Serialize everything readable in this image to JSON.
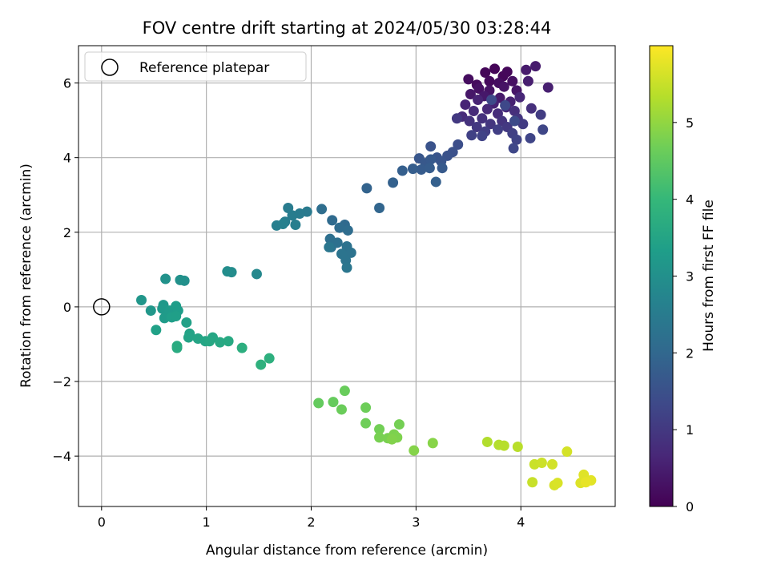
{
  "chart_data": {
    "type": "scatter",
    "title": "FOV centre drift starting at 2024/05/30 03:28:44",
    "xlabel": "Angular distance from reference (arcmin)",
    "ylabel": "Rotation from reference (arcmin)",
    "xlim": [
      -0.22,
      4.9
    ],
    "ylim": [
      -5.35,
      7.0
    ],
    "xticks": [
      0,
      1,
      2,
      3,
      4
    ],
    "yticks": [
      -4,
      -2,
      0,
      2,
      4,
      6
    ],
    "grid": true,
    "legend": {
      "position": "top-left",
      "entries": [
        "Reference platepar"
      ]
    },
    "reference_point": {
      "x": 0,
      "y": 0,
      "label": "Reference platepar",
      "marker": "open-circle"
    },
    "colorbar": {
      "label": "Hours from first FF file",
      "colormap": "viridis",
      "min": 0,
      "max": 6,
      "ticks": [
        0,
        1,
        2,
        3,
        4,
        5
      ]
    },
    "colors": {
      "viridis": [
        "#440154",
        "#482878",
        "#3e4989",
        "#31688e",
        "#26828e",
        "#1f9e89",
        "#35b779",
        "#6ece58",
        "#b5de2b",
        "#fde725"
      ],
      "grid": "#b0b0b0",
      "axes": "#000000"
    },
    "points": [
      {
        "x": 3.75,
        "y": 6.38,
        "t": 0.05
      },
      {
        "x": 3.66,
        "y": 6.28,
        "t": 0.08
      },
      {
        "x": 3.83,
        "y": 6.18,
        "t": 0.1
      },
      {
        "x": 3.87,
        "y": 6.3,
        "t": 0.12
      },
      {
        "x": 3.7,
        "y": 6.05,
        "t": 0.15
      },
      {
        "x": 3.58,
        "y": 5.95,
        "t": 0.17
      },
      {
        "x": 3.5,
        "y": 6.1,
        "t": 0.2
      },
      {
        "x": 3.79,
        "y": 6.0,
        "t": 0.22
      },
      {
        "x": 3.92,
        "y": 6.05,
        "t": 0.25
      },
      {
        "x": 3.6,
        "y": 5.85,
        "t": 0.27
      },
      {
        "x": 3.7,
        "y": 5.8,
        "t": 0.3
      },
      {
        "x": 3.84,
        "y": 5.9,
        "t": 0.32
      },
      {
        "x": 3.96,
        "y": 5.8,
        "t": 0.35
      },
      {
        "x": 3.52,
        "y": 5.7,
        "t": 0.37
      },
      {
        "x": 3.65,
        "y": 5.65,
        "t": 0.4
      },
      {
        "x": 3.8,
        "y": 5.6,
        "t": 0.42
      },
      {
        "x": 4.05,
        "y": 6.35,
        "t": 0.45
      },
      {
        "x": 4.14,
        "y": 6.45,
        "t": 0.47
      },
      {
        "x": 4.07,
        "y": 6.05,
        "t": 0.5
      },
      {
        "x": 4.26,
        "y": 5.88,
        "t": 0.52
      },
      {
        "x": 3.9,
        "y": 5.5,
        "t": 0.55
      },
      {
        "x": 3.74,
        "y": 5.45,
        "t": 0.57
      },
      {
        "x": 3.59,
        "y": 5.55,
        "t": 0.6
      },
      {
        "x": 3.47,
        "y": 5.42,
        "t": 0.62
      },
      {
        "x": 3.99,
        "y": 5.62,
        "t": 0.65
      },
      {
        "x": 3.86,
        "y": 5.35,
        "t": 0.67
      },
      {
        "x": 3.68,
        "y": 5.3,
        "t": 0.7
      },
      {
        "x": 3.55,
        "y": 5.25,
        "t": 0.72
      },
      {
        "x": 3.44,
        "y": 5.1,
        "t": 0.75
      },
      {
        "x": 3.78,
        "y": 5.18,
        "t": 0.77
      },
      {
        "x": 3.94,
        "y": 5.25,
        "t": 0.8
      },
      {
        "x": 4.1,
        "y": 5.32,
        "t": 0.82
      },
      {
        "x": 3.63,
        "y": 5.05,
        "t": 0.85
      },
      {
        "x": 3.51,
        "y": 4.98,
        "t": 0.87
      },
      {
        "x": 3.82,
        "y": 4.98,
        "t": 0.9
      },
      {
        "x": 3.97,
        "y": 5.05,
        "t": 0.92
      },
      {
        "x": 3.71,
        "y": 4.9,
        "t": 0.95
      },
      {
        "x": 3.58,
        "y": 4.82,
        "t": 0.97
      },
      {
        "x": 3.39,
        "y": 5.05,
        "t": 1.0
      },
      {
        "x": 3.87,
        "y": 4.82,
        "t": 1.02
      },
      {
        "x": 4.02,
        "y": 4.9,
        "t": 1.05
      },
      {
        "x": 4.19,
        "y": 5.15,
        "t": 1.07
      },
      {
        "x": 3.66,
        "y": 4.7,
        "t": 1.1
      },
      {
        "x": 3.78,
        "y": 4.75,
        "t": 1.12
      },
      {
        "x": 3.92,
        "y": 4.65,
        "t": 1.15
      },
      {
        "x": 3.53,
        "y": 4.6,
        "t": 1.17
      },
      {
        "x": 3.63,
        "y": 4.58,
        "t": 1.2
      },
      {
        "x": 3.96,
        "y": 4.48,
        "t": 1.22
      },
      {
        "x": 4.09,
        "y": 4.52,
        "t": 1.25
      },
      {
        "x": 4.21,
        "y": 4.75,
        "t": 1.27
      },
      {
        "x": 3.93,
        "y": 4.25,
        "t": 1.3
      },
      {
        "x": 3.85,
        "y": 5.4,
        "t": 1.32
      },
      {
        "x": 3.72,
        "y": 5.55,
        "t": 1.35
      },
      {
        "x": 3.94,
        "y": 4.98,
        "t": 1.37
      },
      {
        "x": 3.4,
        "y": 4.35,
        "t": 1.45
      },
      {
        "x": 3.35,
        "y": 4.15,
        "t": 1.5
      },
      {
        "x": 3.3,
        "y": 4.05,
        "t": 1.52
      },
      {
        "x": 3.14,
        "y": 4.3,
        "t": 1.55
      },
      {
        "x": 3.2,
        "y": 4.0,
        "t": 1.57
      },
      {
        "x": 3.24,
        "y": 3.9,
        "t": 1.6
      },
      {
        "x": 3.03,
        "y": 3.98,
        "t": 1.62
      },
      {
        "x": 3.09,
        "y": 3.85,
        "t": 1.65
      },
      {
        "x": 3.14,
        "y": 3.95,
        "t": 1.67
      },
      {
        "x": 3.25,
        "y": 3.72,
        "t": 1.7
      },
      {
        "x": 3.05,
        "y": 3.68,
        "t": 1.72
      },
      {
        "x": 3.13,
        "y": 3.72,
        "t": 1.75
      },
      {
        "x": 2.97,
        "y": 3.7,
        "t": 1.77
      },
      {
        "x": 2.87,
        "y": 3.65,
        "t": 1.8
      },
      {
        "x": 3.19,
        "y": 3.35,
        "t": 1.82
      },
      {
        "x": 2.78,
        "y": 3.33,
        "t": 1.85
      },
      {
        "x": 2.53,
        "y": 3.18,
        "t": 1.9
      },
      {
        "x": 2.65,
        "y": 2.65,
        "t": 1.95
      },
      {
        "x": 2.32,
        "y": 2.2,
        "t": 2.05
      },
      {
        "x": 2.2,
        "y": 2.32,
        "t": 2.08
      },
      {
        "x": 2.27,
        "y": 2.12,
        "t": 2.1
      },
      {
        "x": 2.35,
        "y": 2.05,
        "t": 2.12
      },
      {
        "x": 2.1,
        "y": 2.62,
        "t": 2.15
      },
      {
        "x": 2.18,
        "y": 1.82,
        "t": 2.17
      },
      {
        "x": 2.25,
        "y": 1.72,
        "t": 2.2
      },
      {
        "x": 2.19,
        "y": 1.6,
        "t": 2.22
      },
      {
        "x": 2.34,
        "y": 1.62,
        "t": 2.25
      },
      {
        "x": 2.38,
        "y": 1.45,
        "t": 2.27
      },
      {
        "x": 2.29,
        "y": 1.42,
        "t": 2.3
      },
      {
        "x": 2.33,
        "y": 1.25,
        "t": 2.32
      },
      {
        "x": 2.34,
        "y": 1.05,
        "t": 2.35
      },
      {
        "x": 2.17,
        "y": 1.6,
        "t": 2.37
      },
      {
        "x": 1.96,
        "y": 2.55,
        "t": 2.45
      },
      {
        "x": 1.89,
        "y": 2.5,
        "t": 2.48
      },
      {
        "x": 1.78,
        "y": 2.65,
        "t": 2.5
      },
      {
        "x": 1.82,
        "y": 2.45,
        "t": 2.52
      },
      {
        "x": 1.75,
        "y": 2.28,
        "t": 2.55
      },
      {
        "x": 1.85,
        "y": 2.2,
        "t": 2.57
      },
      {
        "x": 1.67,
        "y": 2.18,
        "t": 2.6
      },
      {
        "x": 1.73,
        "y": 2.22,
        "t": 2.62
      },
      {
        "x": 1.48,
        "y": 0.88,
        "t": 2.8
      },
      {
        "x": 1.24,
        "y": 0.93,
        "t": 2.9
      },
      {
        "x": 1.2,
        "y": 0.95,
        "t": 2.92
      },
      {
        "x": 0.79,
        "y": 0.7,
        "t": 3.0
      },
      {
        "x": 0.75,
        "y": 0.72,
        "t": 3.02
      },
      {
        "x": 0.61,
        "y": 0.75,
        "t": 3.05
      },
      {
        "x": 0.38,
        "y": 0.18,
        "t": 3.15
      },
      {
        "x": 0.47,
        "y": -0.1,
        "t": 3.17
      },
      {
        "x": 0.59,
        "y": 0.05,
        "t": 3.2
      },
      {
        "x": 0.58,
        "y": -0.05,
        "t": 3.22
      },
      {
        "x": 0.65,
        "y": -0.1,
        "t": 3.25
      },
      {
        "x": 0.6,
        "y": -0.3,
        "t": 3.27
      },
      {
        "x": 0.71,
        "y": 0.02,
        "t": 3.3
      },
      {
        "x": 0.73,
        "y": -0.1,
        "t": 3.32
      },
      {
        "x": 0.67,
        "y": -0.28,
        "t": 3.35
      },
      {
        "x": 0.71,
        "y": -0.25,
        "t": 3.37
      },
      {
        "x": 0.52,
        "y": -0.62,
        "t": 3.4
      },
      {
        "x": 0.81,
        "y": -0.42,
        "t": 3.42
      },
      {
        "x": 0.84,
        "y": -0.72,
        "t": 3.45
      },
      {
        "x": 0.83,
        "y": -0.82,
        "t": 3.47
      },
      {
        "x": 0.92,
        "y": -0.85,
        "t": 3.5
      },
      {
        "x": 0.99,
        "y": -0.92,
        "t": 3.52
      },
      {
        "x": 1.06,
        "y": -0.82,
        "t": 3.55
      },
      {
        "x": 1.03,
        "y": -0.92,
        "t": 3.57
      },
      {
        "x": 1.13,
        "y": -0.95,
        "t": 3.6
      },
      {
        "x": 1.21,
        "y": -0.92,
        "t": 3.62
      },
      {
        "x": 0.72,
        "y": -1.05,
        "t": 3.65
      },
      {
        "x": 0.72,
        "y": -1.1,
        "t": 3.67
      },
      {
        "x": 1.34,
        "y": -1.1,
        "t": 3.75
      },
      {
        "x": 1.6,
        "y": -1.38,
        "t": 3.8
      },
      {
        "x": 1.52,
        "y": -1.55,
        "t": 3.82
      },
      {
        "x": 2.07,
        "y": -2.58,
        "t": 4.55
      },
      {
        "x": 2.21,
        "y": -2.55,
        "t": 4.57
      },
      {
        "x": 2.32,
        "y": -2.25,
        "t": 4.6
      },
      {
        "x": 2.29,
        "y": -2.75,
        "t": 4.62
      },
      {
        "x": 2.52,
        "y": -2.7,
        "t": 4.65
      },
      {
        "x": 2.52,
        "y": -3.12,
        "t": 4.67
      },
      {
        "x": 2.65,
        "y": -3.28,
        "t": 4.7
      },
      {
        "x": 2.84,
        "y": -3.15,
        "t": 4.72
      },
      {
        "x": 2.65,
        "y": -3.5,
        "t": 4.75
      },
      {
        "x": 2.73,
        "y": -3.52,
        "t": 4.77
      },
      {
        "x": 2.79,
        "y": -3.42,
        "t": 4.8
      },
      {
        "x": 2.82,
        "y": -3.5,
        "t": 4.82
      },
      {
        "x": 2.77,
        "y": -3.55,
        "t": 4.85
      },
      {
        "x": 2.98,
        "y": -3.85,
        "t": 4.88
      },
      {
        "x": 3.16,
        "y": -3.65,
        "t": 4.9
      },
      {
        "x": 3.68,
        "y": -3.62,
        "t": 5.3
      },
      {
        "x": 3.79,
        "y": -3.7,
        "t": 5.32
      },
      {
        "x": 3.84,
        "y": -3.72,
        "t": 5.35
      },
      {
        "x": 3.97,
        "y": -3.75,
        "t": 5.37
      },
      {
        "x": 4.11,
        "y": -4.7,
        "t": 5.5
      },
      {
        "x": 4.13,
        "y": -4.22,
        "t": 5.52
      },
      {
        "x": 4.2,
        "y": -4.18,
        "t": 5.55
      },
      {
        "x": 4.3,
        "y": -4.22,
        "t": 5.6
      },
      {
        "x": 4.44,
        "y": -3.88,
        "t": 5.62
      },
      {
        "x": 4.32,
        "y": -4.78,
        "t": 5.65
      },
      {
        "x": 4.35,
        "y": -4.72,
        "t": 5.67
      },
      {
        "x": 4.57,
        "y": -4.72,
        "t": 5.7
      },
      {
        "x": 4.6,
        "y": -4.5,
        "t": 5.72
      },
      {
        "x": 4.67,
        "y": -4.65,
        "t": 5.75
      },
      {
        "x": 4.62,
        "y": -4.7,
        "t": 5.8
      }
    ]
  }
}
